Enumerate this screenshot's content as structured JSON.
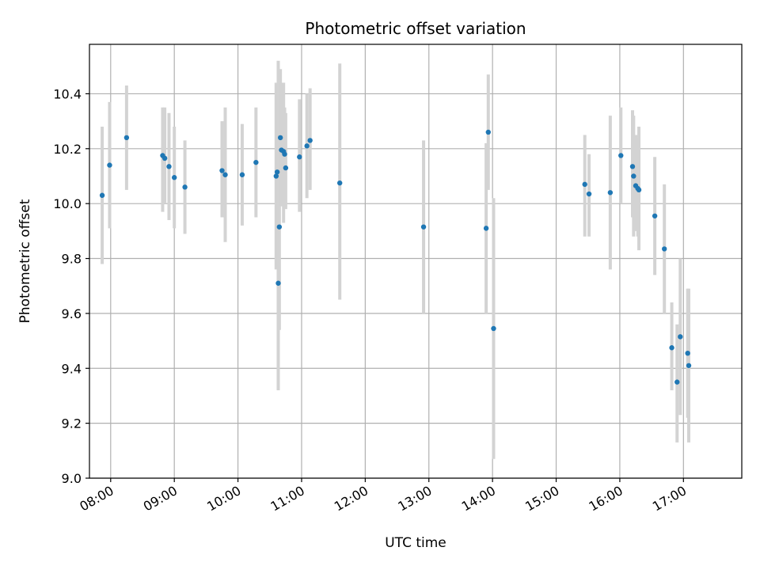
{
  "chart_data": {
    "type": "scatter",
    "title": "Photometric offset variation",
    "xlabel": "UTC time",
    "ylabel": "Photometric offset",
    "xlim": [
      "07:40",
      "17:55"
    ],
    "ylim": [
      9.0,
      10.58
    ],
    "grid": true,
    "x_ticks": [
      "08:00",
      "09:00",
      "10:00",
      "11:00",
      "12:00",
      "13:00",
      "14:00",
      "15:00",
      "16:00",
      "17:00"
    ],
    "y_ticks": [
      "9.0",
      "9.2",
      "9.4",
      "9.6",
      "9.8",
      "10.0",
      "10.2",
      "10.4"
    ],
    "colors": {
      "points": "#1f77b4",
      "errorbars": "#d3d3d3",
      "grid": "#b0b0b0"
    },
    "series": [
      {
        "x": [
          "07:52",
          "07:59",
          "08:15",
          "08:49",
          "08:51",
          "08:55",
          "09:00",
          "09:10",
          "09:45",
          "09:48",
          "10:04",
          "10:17",
          "10:36",
          "10:37",
          "10:38",
          "10:39",
          "10:40",
          "10:41",
          "10:43",
          "10:44",
          "10:45",
          "10:58",
          "11:05",
          "11:08",
          "11:36",
          "12:55",
          "13:54",
          "13:56",
          "14:01",
          "15:27",
          "15:31",
          "15:51",
          "16:01",
          "16:12",
          "16:13",
          "16:15",
          "16:17",
          "16:18",
          "16:33",
          "16:42",
          "16:49",
          "16:54",
          "16:57",
          "17:04",
          "17:05"
        ],
        "y": [
          10.03,
          10.14,
          10.24,
          10.175,
          10.165,
          10.135,
          10.095,
          10.06,
          10.12,
          10.105,
          10.105,
          10.15,
          10.1,
          10.115,
          9.71,
          9.915,
          10.24,
          10.195,
          10.19,
          10.18,
          10.13,
          10.17,
          10.21,
          10.23,
          10.075,
          9.915,
          9.91,
          10.26,
          9.545,
          10.07,
          10.035,
          10.04,
          10.175,
          10.135,
          10.1,
          10.065,
          10.055,
          10.05,
          9.955,
          9.835,
          9.475,
          9.35,
          9.515,
          9.455,
          9.41
        ],
        "yerr_low": [
          9.78,
          9.91,
          10.05,
          9.97,
          10.0,
          9.94,
          9.91,
          9.89,
          9.95,
          9.86,
          9.92,
          9.95,
          9.76,
          9.97,
          9.32,
          9.54,
          9.99,
          9.99,
          9.93,
          10.0,
          9.98,
          9.97,
          10.02,
          10.05,
          9.65,
          9.6,
          9.6,
          10.05,
          9.07,
          9.88,
          9.88,
          9.76,
          10.0,
          9.95,
          9.88,
          9.9,
          9.88,
          9.83,
          9.74,
          9.6,
          9.32,
          9.13,
          9.23,
          9.22,
          9.13
        ],
        "yerr_high": [
          10.28,
          10.37,
          10.43,
          10.35,
          10.35,
          10.33,
          10.28,
          10.23,
          10.3,
          10.35,
          10.29,
          10.35,
          10.44,
          10.26,
          10.52,
          10.28,
          10.49,
          10.44,
          10.44,
          10.35,
          10.33,
          10.38,
          10.4,
          10.42,
          10.51,
          10.23,
          10.22,
          10.47,
          10.02,
          10.25,
          10.18,
          10.32,
          10.35,
          10.34,
          10.32,
          10.25,
          10.24,
          10.28,
          10.17,
          10.07,
          9.64,
          9.56,
          9.8,
          9.69,
          9.69
        ]
      }
    ]
  }
}
